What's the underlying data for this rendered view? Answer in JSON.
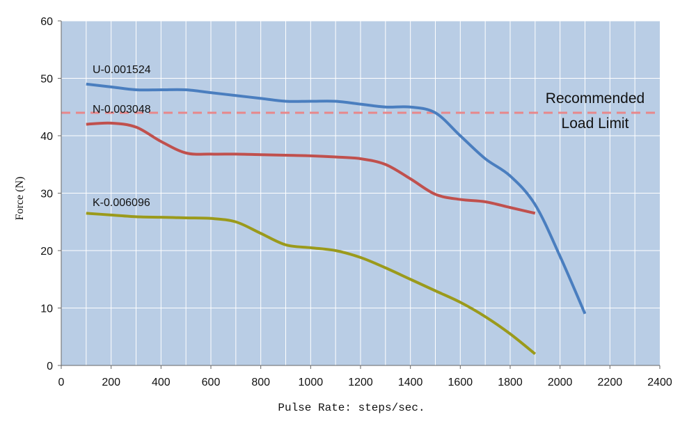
{
  "chart_data": {
    "type": "line",
    "title": "",
    "xlabel": "Pulse Rate: steps/sec.",
    "ylabel": "Force (N)",
    "xlim": [
      0,
      2400
    ],
    "ylim": [
      0,
      60
    ],
    "xticks": [
      0,
      200,
      400,
      600,
      800,
      1000,
      1200,
      1400,
      1600,
      1800,
      2000,
      2200,
      2400
    ],
    "yticks": [
      0,
      10,
      20,
      30,
      40,
      50,
      60
    ],
    "grid": true,
    "colors": {
      "plot_bg": "#b9cde5",
      "grid": "#ffffff"
    },
    "series": [
      {
        "name": "U-0.001524",
        "color": "#4a7ebf",
        "x": [
          100,
          200,
          300,
          400,
          500,
          600,
          700,
          800,
          900,
          1000,
          1100,
          1200,
          1300,
          1400,
          1500,
          1600,
          1700,
          1800,
          1900,
          2000,
          2100
        ],
        "y": [
          49,
          48.5,
          48,
          48,
          48,
          47.5,
          47,
          46.5,
          46,
          46,
          46,
          45.5,
          45,
          45,
          44,
          40,
          36,
          33,
          28,
          19,
          9
        ]
      },
      {
        "name": "N-0.003048",
        "color": "#c0504d",
        "x": [
          100,
          200,
          300,
          400,
          500,
          600,
          700,
          800,
          900,
          1000,
          1100,
          1200,
          1300,
          1400,
          1500,
          1600,
          1700,
          1800,
          1900
        ],
        "y": [
          42,
          42.2,
          41.5,
          39,
          37,
          36.8,
          36.8,
          36.7,
          36.6,
          36.5,
          36.3,
          36,
          35,
          32.5,
          29.8,
          28.9,
          28.5,
          27.5,
          26.5
        ]
      },
      {
        "name": "K-0.006096",
        "color": "#9b9a1b",
        "x": [
          100,
          200,
          300,
          400,
          500,
          600,
          700,
          800,
          900,
          1000,
          1100,
          1200,
          1300,
          1400,
          1500,
          1600,
          1700,
          1800,
          1900
        ],
        "y": [
          26.5,
          26.2,
          25.9,
          25.8,
          25.7,
          25.6,
          25,
          23,
          21,
          20.5,
          20,
          18.8,
          17,
          15,
          13,
          11,
          8.5,
          5.5,
          2
        ]
      }
    ],
    "reference_line": {
      "y": 44,
      "color": "#e8878a",
      "label_line1": "Recommended",
      "label_line2": "Load Limit"
    }
  }
}
